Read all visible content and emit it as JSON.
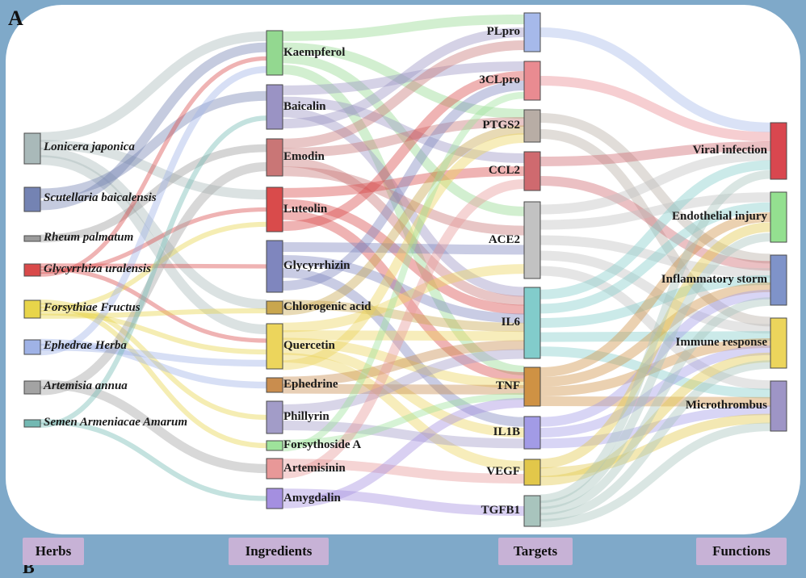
{
  "panel_letter": "A",
  "next_panel_letter": "B",
  "columns": [
    {
      "title": "Herbs"
    },
    {
      "title": "Ingredients"
    },
    {
      "title": "Targets"
    },
    {
      "title": "Functions"
    }
  ],
  "nodes": {
    "herbs": [
      {
        "id": "h1",
        "label": "Lonicera japonica",
        "color": "#a9b9b9"
      },
      {
        "id": "h2",
        "label": "Scutellaria baicalensis",
        "color": "#7483b3"
      },
      {
        "id": "h3",
        "label": "Rheum palmatum",
        "color": "#9b9b9b"
      },
      {
        "id": "h4",
        "label": "Glycyrrhiza uralensis",
        "color": "#d94a4a"
      },
      {
        "id": "h5",
        "label": "Forsythiae Fructus",
        "color": "#e8d54a"
      },
      {
        "id": "h6",
        "label": "Ephedrae Herba",
        "color": "#9fb2e6"
      },
      {
        "id": "h7",
        "label": "Artemisia annua",
        "color": "#a3a3a3"
      },
      {
        "id": "h8",
        "label": "Semen Armeniacae Amarum",
        "color": "#73b9b3"
      }
    ],
    "ingredients": [
      {
        "id": "i1",
        "label": "Kaempferol",
        "color": "#93d890"
      },
      {
        "id": "i2",
        "label": "Baicalin",
        "color": "#9a93c4"
      },
      {
        "id": "i3",
        "label": "Emodin",
        "color": "#c97676"
      },
      {
        "id": "i4",
        "label": "Luteolin",
        "color": "#d94b4b"
      },
      {
        "id": "i5",
        "label": "Glycyrrhizin",
        "color": "#7f86be"
      },
      {
        "id": "i6",
        "label": "Chlorogenic acid",
        "color": "#c9a64e"
      },
      {
        "id": "i7",
        "label": "Quercetin",
        "color": "#ecd55c"
      },
      {
        "id": "i8",
        "label": "Ephedrine",
        "color": "#c98d4e"
      },
      {
        "id": "i9",
        "label": "Phillyrin",
        "color": "#a29cc8"
      },
      {
        "id": "i10",
        "label": "Forsythoside A",
        "color": "#9ee39b"
      },
      {
        "id": "i11",
        "label": "Artemisinin",
        "color": "#e89898"
      },
      {
        "id": "i12",
        "label": "Amygdalin",
        "color": "#a48fe0"
      }
    ],
    "targets": [
      {
        "id": "t1",
        "label": "PLpro",
        "color": "#a6b9ea"
      },
      {
        "id": "t2",
        "label": "3CLpro",
        "color": "#e98b91"
      },
      {
        "id": "t3",
        "label": "PTGS2",
        "color": "#b8ada5"
      },
      {
        "id": "t4",
        "label": "CCL2",
        "color": "#cf6a6f"
      },
      {
        "id": "t5",
        "label": "ACE2",
        "color": "#c2c2c2"
      },
      {
        "id": "t6",
        "label": "IL6",
        "color": "#82cccb"
      },
      {
        "id": "t7",
        "label": "TNF",
        "color": "#cf9244"
      },
      {
        "id": "t8",
        "label": "IL1B",
        "color": "#a29be6"
      },
      {
        "id": "t9",
        "label": "VEGF",
        "color": "#e2c74a"
      },
      {
        "id": "t10",
        "label": "TGFB1",
        "color": "#a8c4bd"
      }
    ],
    "functions": [
      {
        "id": "f1",
        "label": "Viral infection",
        "color": "#d9474f"
      },
      {
        "id": "f2",
        "label": "Endothelial injury",
        "color": "#94e090"
      },
      {
        "id": "f3",
        "label": "Inflammatory storm",
        "color": "#7f93c9"
      },
      {
        "id": "f4",
        "label": "Immune response",
        "color": "#ecd55c"
      },
      {
        "id": "f5",
        "label": "Microthrombus",
        "color": "#9e95c6"
      }
    ]
  },
  "links": [
    [
      "h1",
      "i1"
    ],
    [
      "h1",
      "i4"
    ],
    [
      "h1",
      "i6"
    ],
    [
      "h1",
      "i7"
    ],
    [
      "h2",
      "i2"
    ],
    [
      "h2",
      "i1"
    ],
    [
      "h3",
      "i3"
    ],
    [
      "h4",
      "i5"
    ],
    [
      "h4",
      "i7"
    ],
    [
      "h4",
      "i4"
    ],
    [
      "h4",
      "i1"
    ],
    [
      "h5",
      "i9"
    ],
    [
      "h5",
      "i10"
    ],
    [
      "h5",
      "i4"
    ],
    [
      "h5",
      "i7"
    ],
    [
      "h5",
      "i6"
    ],
    [
      "h6",
      "i8"
    ],
    [
      "h6",
      "i7"
    ],
    [
      "h6",
      "i1"
    ],
    [
      "h7",
      "i11"
    ],
    [
      "h7",
      "i3"
    ],
    [
      "h8",
      "i12"
    ],
    [
      "h8",
      "i2"
    ],
    [
      "i1",
      "t1"
    ],
    [
      "i1",
      "t3"
    ],
    [
      "i1",
      "t5"
    ],
    [
      "i1",
      "t7"
    ],
    [
      "i2",
      "t2"
    ],
    [
      "i2",
      "t4"
    ],
    [
      "i2",
      "t6"
    ],
    [
      "i2",
      "t1"
    ],
    [
      "i3",
      "t1"
    ],
    [
      "i3",
      "t3"
    ],
    [
      "i3",
      "t6"
    ],
    [
      "i3",
      "t5"
    ],
    [
      "i4",
      "t4"
    ],
    [
      "i4",
      "t6"
    ],
    [
      "i4",
      "t7"
    ],
    [
      "i4",
      "t2"
    ],
    [
      "i5",
      "t5"
    ],
    [
      "i5",
      "t6"
    ],
    [
      "i5",
      "t8"
    ],
    [
      "i5",
      "t2"
    ],
    [
      "i6",
      "t6"
    ],
    [
      "i6",
      "t3"
    ],
    [
      "i7",
      "t5"
    ],
    [
      "i7",
      "t6"
    ],
    [
      "i7",
      "t7"
    ],
    [
      "i7",
      "t8"
    ],
    [
      "i7",
      "t9"
    ],
    [
      "i7",
      "t3"
    ],
    [
      "i8",
      "t6"
    ],
    [
      "i8",
      "t7"
    ],
    [
      "i9",
      "t6"
    ],
    [
      "i9",
      "t8"
    ],
    [
      "i10",
      "t7"
    ],
    [
      "i10",
      "t2"
    ],
    [
      "i11",
      "t9"
    ],
    [
      "i11",
      "t4"
    ],
    [
      "i12",
      "t10"
    ],
    [
      "i12",
      "t7"
    ],
    [
      "t1",
      "f1"
    ],
    [
      "t2",
      "f1"
    ],
    [
      "t3",
      "f3"
    ],
    [
      "t3",
      "f4"
    ],
    [
      "t4",
      "f1"
    ],
    [
      "t4",
      "f3"
    ],
    [
      "t5",
      "f1"
    ],
    [
      "t5",
      "f2"
    ],
    [
      "t5",
      "f3"
    ],
    [
      "t5",
      "f4"
    ],
    [
      "t5",
      "f5"
    ],
    [
      "t6",
      "f1"
    ],
    [
      "t6",
      "f2"
    ],
    [
      "t6",
      "f3"
    ],
    [
      "t6",
      "f4"
    ],
    [
      "t6",
      "f5"
    ],
    [
      "t7",
      "f2"
    ],
    [
      "t7",
      "f3"
    ],
    [
      "t7",
      "f4"
    ],
    [
      "t7",
      "f5"
    ],
    [
      "t8",
      "f3"
    ],
    [
      "t8",
      "f4"
    ],
    [
      "t8",
      "f5"
    ],
    [
      "t9",
      "f2"
    ],
    [
      "t9",
      "f5"
    ],
    [
      "t9",
      "f4"
    ],
    [
      "t10",
      "f1"
    ],
    [
      "t10",
      "f2"
    ],
    [
      "t10",
      "f3"
    ],
    [
      "t10",
      "f4"
    ],
    [
      "t10",
      "f5"
    ]
  ]
}
